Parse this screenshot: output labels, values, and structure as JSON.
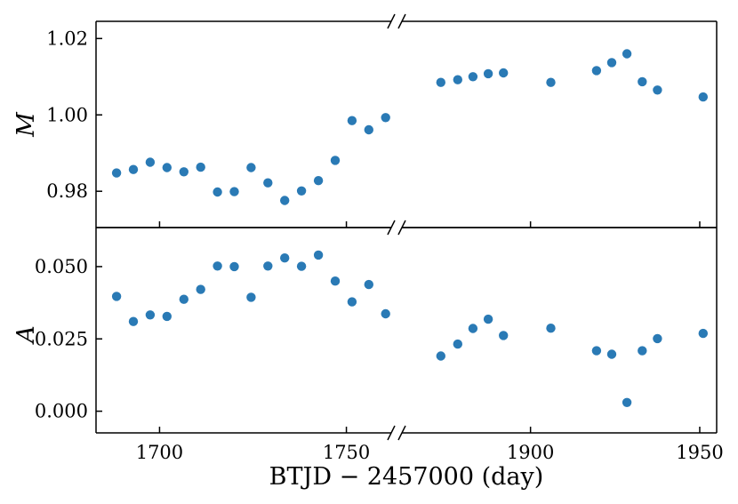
{
  "chart_data": {
    "type": "scatter",
    "xlabel": "BTJD − 2457000 (day)",
    "broken_x_axis": true,
    "x_segments": [
      {
        "range": [
          1683,
          1762
        ],
        "ticks": [
          1700,
          1750
        ]
      },
      {
        "range": [
          1862,
          1955
        ],
        "ticks": [
          1900,
          1950
        ]
      }
    ],
    "marker_color": "#2a7ab5",
    "x": [
      1688.5,
      1693.0,
      1697.5,
      1702.0,
      1706.5,
      1711.0,
      1715.5,
      1720.0,
      1724.5,
      1729.0,
      1733.5,
      1738.0,
      1742.5,
      1747.0,
      1751.5,
      1756.0,
      1760.5,
      1873.5,
      1878.5,
      1883.0,
      1887.5,
      1892.0,
      1906.0,
      1919.5,
      1924.0,
      1928.5,
      1933.0,
      1937.5,
      1951.0
    ],
    "panels": [
      {
        "ylabel": "M",
        "ylim": [
          0.9705,
          1.0245
        ],
        "yticks": [
          0.98,
          1.0,
          1.02
        ],
        "ytick_labels": [
          "0.98",
          "1.00",
          "1.02"
        ],
        "y": [
          0.9848,
          0.9857,
          0.9876,
          0.9862,
          0.9851,
          0.9863,
          0.9798,
          0.9799,
          0.9862,
          0.9822,
          0.9776,
          0.9801,
          0.9828,
          0.9881,
          0.9985,
          0.9961,
          0.9993,
          1.0085,
          1.0092,
          1.01,
          1.0108,
          1.011,
          1.0085,
          1.0116,
          1.0137,
          1.016,
          1.0087,
          1.0065,
          1.0047
        ]
      },
      {
        "ylabel": "A",
        "ylim": [
          -0.0075,
          0.0635
        ],
        "yticks": [
          0.0,
          0.025,
          0.05
        ],
        "ytick_labels": [
          "0.000",
          "0.025",
          "0.050"
        ],
        "y": [
          0.0397,
          0.031,
          0.0333,
          0.0328,
          0.0387,
          0.0421,
          0.0502,
          0.05,
          0.0394,
          0.0502,
          0.053,
          0.0501,
          0.054,
          0.045,
          0.0378,
          0.0438,
          0.0337,
          0.0191,
          0.0232,
          0.0286,
          0.0318,
          0.0262,
          0.0287,
          0.0209,
          0.0197,
          0.003,
          0.0209,
          0.0251,
          0.0269
        ]
      }
    ]
  }
}
